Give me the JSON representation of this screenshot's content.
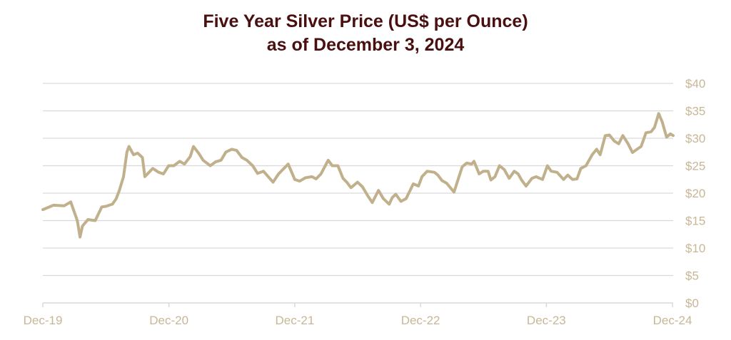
{
  "chart_data": {
    "type": "line",
    "title": "Five Year Silver Price (US$ per Ounce)",
    "subtitle": "as of December 3, 2024",
    "xlabel": "",
    "ylabel": "",
    "y_axis_position": "right",
    "ylim": [
      0,
      40
    ],
    "y_ticks": [
      {
        "value": 40,
        "label": "$40"
      },
      {
        "value": 35,
        "label": "$35"
      },
      {
        "value": 30,
        "label": "$30"
      },
      {
        "value": 25,
        "label": "$25"
      },
      {
        "value": 20,
        "label": "$20"
      },
      {
        "value": 15,
        "label": "$15"
      },
      {
        "value": 10,
        "label": "$10"
      },
      {
        "value": 5,
        "label": "$5"
      },
      {
        "value": 0,
        "label": "$0"
      }
    ],
    "xlim": [
      "2019-12-01",
      "2024-12-03"
    ],
    "x_ticks": [
      {
        "value": "2019-12-01",
        "label": "Dec-19"
      },
      {
        "value": "2020-12-01",
        "label": "Dec-20"
      },
      {
        "value": "2021-12-01",
        "label": "Dec-21"
      },
      {
        "value": "2022-12-01",
        "label": "Dec-22"
      },
      {
        "value": "2023-12-01",
        "label": "Dec-23"
      },
      {
        "value": "2024-12-01",
        "label": "Dec-24"
      }
    ],
    "grid": "horizontal",
    "line_color": "#c1b08c",
    "grid_color": "#d9d9d9",
    "series": [
      {
        "x": [
          "2019-12-01",
          "2020-01-01",
          "2020-02-01",
          "2020-02-20",
          "2020-03-10",
          "2020-03-18",
          "2020-03-25",
          "2020-04-10",
          "2020-05-01",
          "2020-05-20",
          "2020-06-01",
          "2020-06-20",
          "2020-07-01",
          "2020-07-10",
          "2020-07-22",
          "2020-08-01",
          "2020-08-07",
          "2020-08-20",
          "2020-09-01",
          "2020-09-15",
          "2020-09-22",
          "2020-10-15",
          "2020-11-01",
          "2020-11-15",
          "2020-11-30",
          "2020-12-15",
          "2021-01-01",
          "2021-01-15",
          "2021-02-01",
          "2021-02-10",
          "2021-02-25",
          "2021-03-10",
          "2021-03-31",
          "2021-04-15",
          "2021-05-01",
          "2021-05-15",
          "2021-06-01",
          "2021-06-15",
          "2021-07-01",
          "2021-07-15",
          "2021-08-01",
          "2021-08-15",
          "2021-09-01",
          "2021-09-29",
          "2021-10-15",
          "2021-11-12",
          "2021-12-01",
          "2021-12-15",
          "2022-01-01",
          "2022-01-20",
          "2022-02-01",
          "2022-02-15",
          "2022-03-08",
          "2022-03-20",
          "2022-04-05",
          "2022-04-20",
          "2022-05-01",
          "2022-05-13",
          "2022-06-01",
          "2022-06-15",
          "2022-07-01",
          "2022-07-14",
          "2022-08-01",
          "2022-08-15",
          "2022-09-01",
          "2022-09-10",
          "2022-09-20",
          "2022-10-05",
          "2022-10-20",
          "2022-11-10",
          "2022-11-25",
          "2022-12-05",
          "2022-12-20",
          "2023-01-10",
          "2023-01-20",
          "2023-02-01",
          "2023-02-15",
          "2023-03-08",
          "2023-03-20",
          "2023-04-01",
          "2023-04-14",
          "2023-04-28",
          "2023-05-05",
          "2023-05-20",
          "2023-06-01",
          "2023-06-15",
          "2023-06-23",
          "2023-07-05",
          "2023-07-18",
          "2023-08-01",
          "2023-08-15",
          "2023-08-30",
          "2023-09-10",
          "2023-09-20",
          "2023-10-03",
          "2023-10-20",
          "2023-11-01",
          "2023-11-20",
          "2023-12-04",
          "2023-12-15",
          "2024-01-01",
          "2024-01-20",
          "2024-02-01",
          "2024-02-15",
          "2024-02-28",
          "2024-03-10",
          "2024-03-25",
          "2024-04-12",
          "2024-04-25",
          "2024-05-05",
          "2024-05-20",
          "2024-06-01",
          "2024-06-15",
          "2024-06-28",
          "2024-07-10",
          "2024-07-25",
          "2024-08-07",
          "2024-08-20",
          "2024-09-01",
          "2024-09-15",
          "2024-09-30",
          "2024-10-10",
          "2024-10-22",
          "2024-11-01",
          "2024-11-14",
          "2024-11-25",
          "2024-12-03"
        ],
        "values": [
          17.0,
          17.8,
          17.7,
          18.4,
          15.0,
          12.0,
          14.0,
          15.2,
          15.0,
          17.5,
          17.6,
          18.0,
          19.0,
          20.5,
          23.0,
          27.5,
          28.5,
          27.0,
          27.3,
          26.5,
          23.0,
          24.5,
          23.8,
          23.5,
          25.0,
          25.0,
          25.8,
          25.3,
          26.7,
          28.5,
          27.3,
          26.0,
          25.0,
          25.7,
          26.0,
          27.5,
          28.0,
          27.8,
          26.5,
          26.0,
          25.0,
          23.6,
          24.0,
          22.0,
          23.5,
          25.3,
          22.5,
          22.2,
          22.8,
          23.0,
          22.6,
          23.5,
          26.0,
          25.0,
          25.0,
          22.7,
          22.0,
          21.0,
          22.0,
          21.2,
          19.5,
          18.3,
          20.5,
          19.0,
          18.0,
          19.2,
          19.8,
          18.5,
          19.0,
          21.7,
          21.3,
          23.0,
          24.0,
          23.8,
          23.3,
          22.3,
          21.8,
          20.2,
          22.5,
          24.8,
          25.5,
          25.3,
          25.8,
          23.5,
          24.0,
          24.0,
          22.4,
          23.0,
          25.0,
          24.3,
          22.7,
          24.0,
          23.5,
          22.4,
          21.3,
          22.7,
          23.0,
          22.5,
          25.0,
          24.0,
          23.8,
          22.5,
          23.3,
          22.5,
          22.6,
          24.5,
          25.0,
          27.0,
          28.0,
          27.0,
          30.5,
          30.6,
          29.5,
          29.0,
          30.5,
          29.0,
          27.4,
          28.0,
          28.5,
          31.0,
          31.2,
          32.0,
          34.5,
          33.0,
          30.2,
          30.8,
          30.5
        ]
      }
    ]
  }
}
